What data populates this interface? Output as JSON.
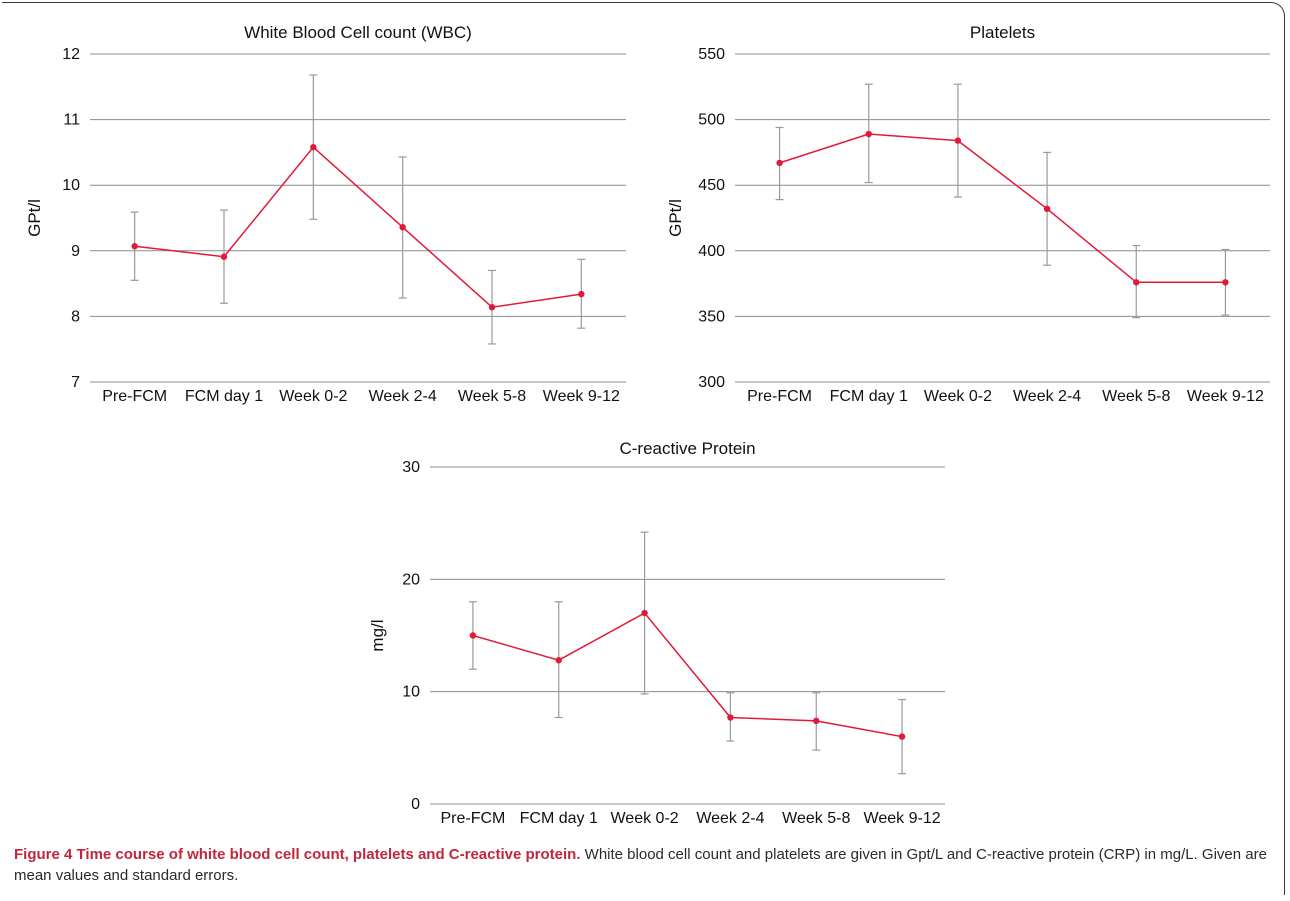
{
  "chart_data": [
    {
      "type": "line",
      "title": "White Blood Cell count (WBC)",
      "ylabel": "GPt/l",
      "xlabel": "",
      "categories": [
        "Pre-FCM",
        "FCM day 1",
        "Week 0-2",
        "Week 2-4",
        "Week 5-8",
        "Week 9-12"
      ],
      "ylim": [
        7,
        12
      ],
      "yticks": [
        7,
        8,
        9,
        10,
        11,
        12
      ],
      "series": [
        {
          "values": [
            9.07,
            8.91,
            10.58,
            9.36,
            8.14,
            8.34
          ],
          "error_low": [
            8.55,
            8.2,
            9.48,
            8.28,
            7.58,
            7.82
          ],
          "error_high": [
            9.59,
            9.62,
            11.68,
            10.43,
            8.7,
            8.87
          ]
        }
      ],
      "grid": true,
      "line_color": "#e31937",
      "error_color": "#9a9a9a"
    },
    {
      "type": "line",
      "title": "Platelets",
      "ylabel": "GPt/l",
      "xlabel": "",
      "categories": [
        "Pre-FCM",
        "FCM day 1",
        "Week 0-2",
        "Week 2-4",
        "Week 5-8",
        "Week 9-12"
      ],
      "ylim": [
        300,
        550
      ],
      "yticks": [
        300,
        350,
        400,
        450,
        500,
        550
      ],
      "series": [
        {
          "values": [
            467,
            489,
            484,
            432,
            376,
            376
          ],
          "error_low": [
            439,
            452,
            441,
            389,
            349,
            351
          ],
          "error_high": [
            494,
            527,
            527,
            475,
            404,
            401
          ]
        }
      ],
      "grid": true,
      "line_color": "#e31937",
      "error_color": "#9a9a9a"
    },
    {
      "type": "line",
      "title": "C-reactive Protein",
      "ylabel": "mg/l",
      "xlabel": "",
      "categories": [
        "Pre-FCM",
        "FCM day 1",
        "Week 0-2",
        "Week 2-4",
        "Week 5-8",
        "Week 9-12"
      ],
      "ylim": [
        0,
        30
      ],
      "yticks": [
        0,
        10,
        20,
        30
      ],
      "series": [
        {
          "values": [
            15.0,
            12.8,
            17.0,
            7.7,
            7.4,
            6.0
          ],
          "error_low": [
            12.0,
            7.7,
            9.8,
            5.6,
            4.8,
            2.7
          ],
          "error_high": [
            18.0,
            18.0,
            24.2,
            9.9,
            9.9,
            9.3
          ]
        }
      ],
      "grid": true,
      "line_color": "#e31937",
      "error_color": "#9a9a9a"
    }
  ],
  "caption": {
    "label": "Figure 4 Time course of white blood cell count, platelets and C-reactive protein.",
    "text": " White blood cell count and platelets are given in Gpt/L and C-reactive protein (CRP) in mg/L. Given are mean values and standard errors."
  }
}
